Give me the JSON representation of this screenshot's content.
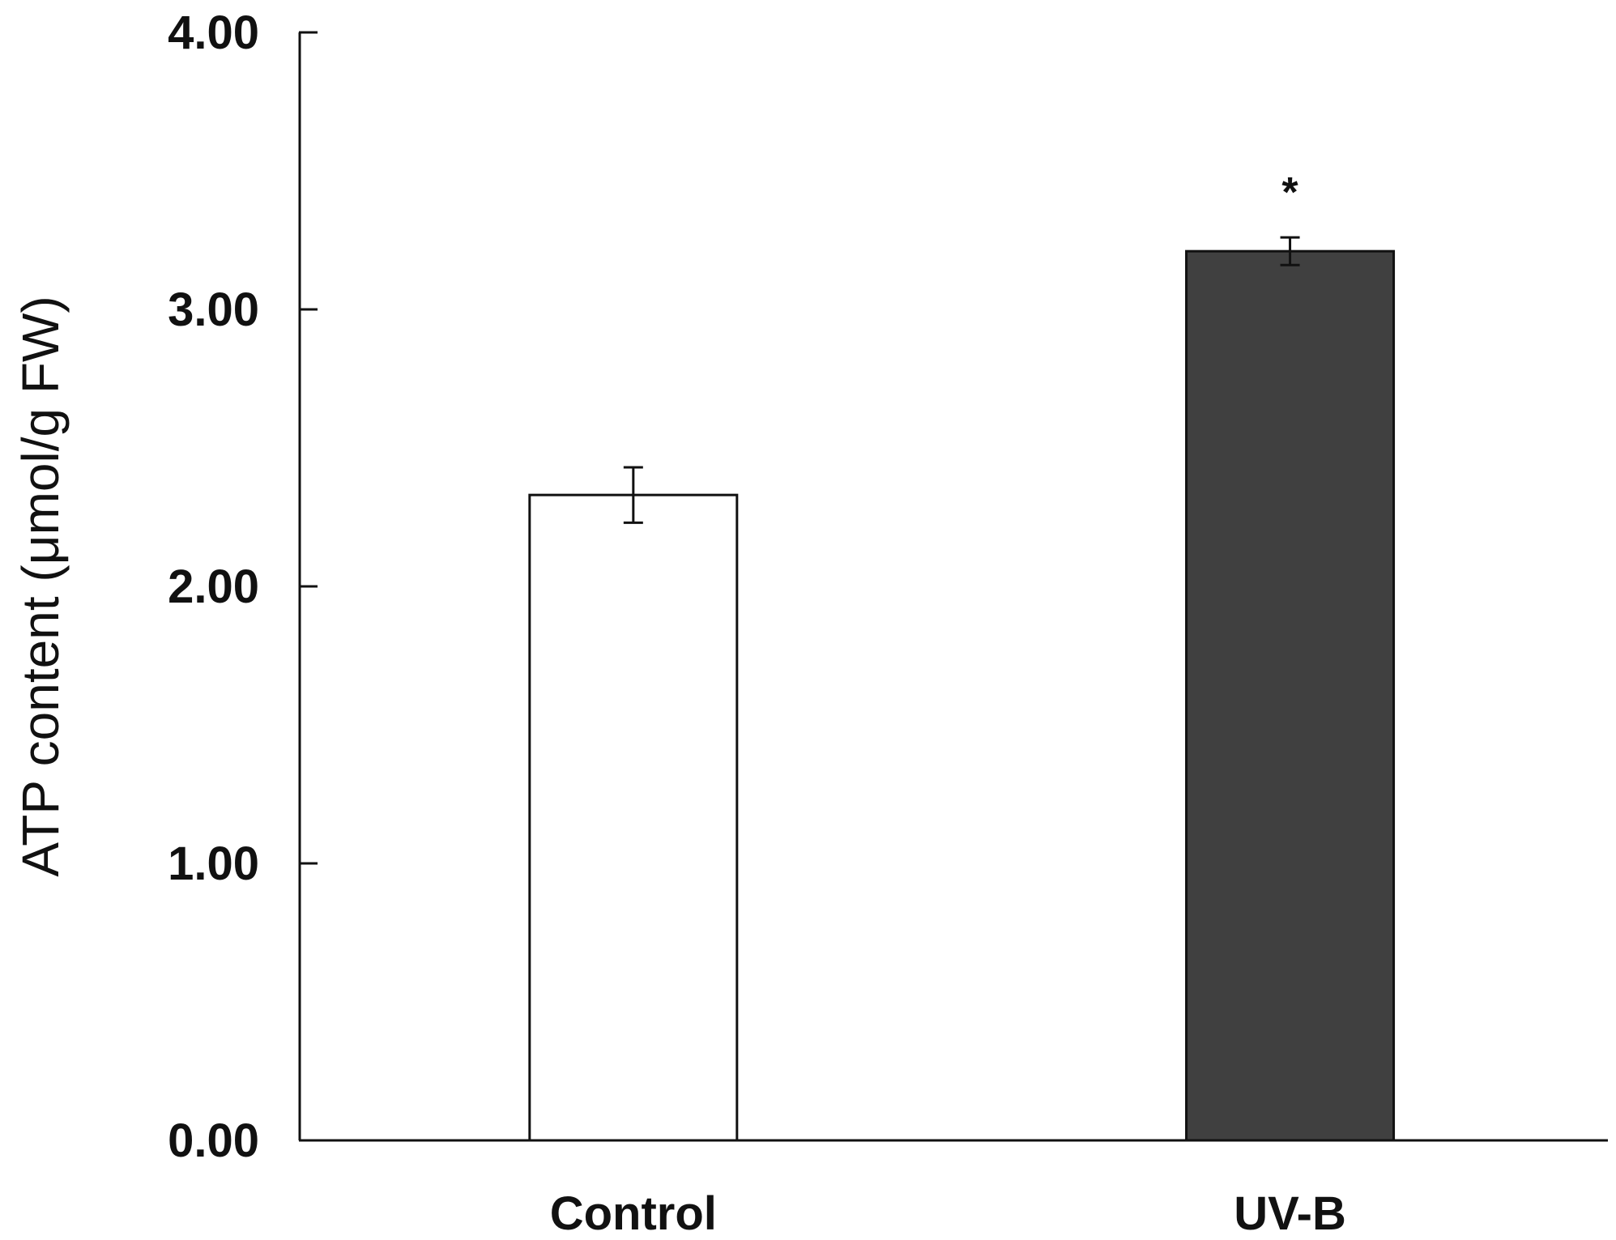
{
  "chart_data": {
    "type": "bar",
    "categories": [
      "Control",
      "UV-B"
    ],
    "series": [
      {
        "values": [
          2.33,
          3.21
        ],
        "errors": [
          0.1,
          0.05
        ],
        "colors": [
          "#ffffff",
          "#404040"
        ]
      }
    ],
    "annotations": [
      "",
      "*"
    ],
    "title": "",
    "xlabel": "",
    "ylabel": "ATP content (μmol/g FW)",
    "ylim": [
      0,
      4
    ],
    "yticks": [
      "0.00",
      "1.00",
      "2.00",
      "3.00",
      "4.00"
    ],
    "grid": false,
    "legend": "none"
  }
}
